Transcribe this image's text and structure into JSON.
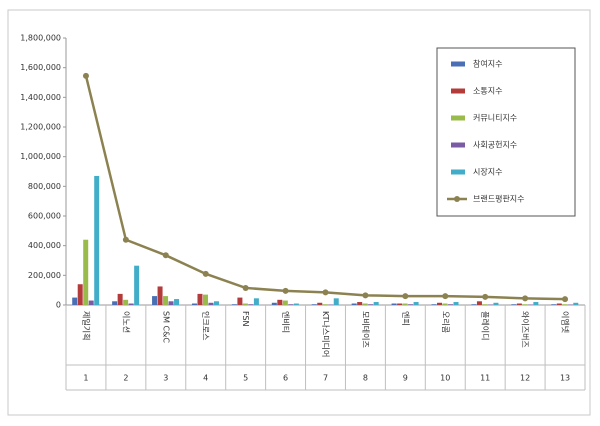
{
  "chart_data": {
    "type": "bar-line",
    "categories": [
      "제일기획",
      "이노션",
      "SM C&C",
      "인크로스",
      "FSN",
      "엔비티",
      "KT나스미디어",
      "모비데이즈",
      "엔피",
      "오리콤",
      "플레이디",
      "와이즈버즈",
      "이엠넷"
    ],
    "ranks": [
      1,
      2,
      3,
      4,
      5,
      6,
      7,
      8,
      9,
      10,
      11,
      12,
      13
    ],
    "series": [
      {
        "name": "참여지수",
        "color": "#4a6fb5",
        "values": [
          50000,
          25000,
          60000,
          10000,
          5000,
          15000,
          5000,
          10000,
          10000,
          5000,
          5000,
          5000,
          5000
        ]
      },
      {
        "name": "소통지수",
        "color": "#b33b3a",
        "values": [
          140000,
          75000,
          125000,
          75000,
          50000,
          35000,
          15000,
          20000,
          10000,
          15000,
          25000,
          10000,
          10000
        ]
      },
      {
        "name": "커뮤니티지수",
        "color": "#99bb4a",
        "values": [
          440000,
          35000,
          60000,
          70000,
          10000,
          30000,
          5000,
          10000,
          10000,
          10000,
          5000,
          5000,
          5000
        ]
      },
      {
        "name": "사회공헌지수",
        "color": "#7b5ba3",
        "values": [
          30000,
          10000,
          25000,
          15000,
          5000,
          5000,
          3000,
          5000,
          5000,
          5000,
          3000,
          3000,
          3000
        ]
      },
      {
        "name": "시장지수",
        "color": "#41adc8",
        "values": [
          870000,
          265000,
          40000,
          25000,
          45000,
          10000,
          45000,
          20000,
          20000,
          20000,
          15000,
          20000,
          15000
        ]
      },
      {
        "name": "브랜드평판지수",
        "color": "#8c8251",
        "kind": "line",
        "values": [
          1545000,
          440000,
          335000,
          210000,
          115000,
          95000,
          85000,
          65000,
          60000,
          60000,
          55000,
          45000,
          40000
        ]
      }
    ],
    "ylim": [
      0,
      1800000
    ],
    "yticks": [
      {
        "value": 0,
        "label": "0"
      },
      {
        "value": 200000,
        "label": "200,000"
      },
      {
        "value": 400000,
        "label": "400,000"
      },
      {
        "value": 600000,
        "label": "600,000"
      },
      {
        "value": 800000,
        "label": "800,000"
      },
      {
        "value": 1000000,
        "label": "1,000,000"
      },
      {
        "value": 1200000,
        "label": "1,200,000"
      },
      {
        "value": 1400000,
        "label": "1,400,000"
      },
      {
        "value": 1600000,
        "label": "1,600,000"
      },
      {
        "value": 1800000,
        "label": "1,800,000"
      }
    ],
    "grid": false,
    "legend": "upper right"
  }
}
